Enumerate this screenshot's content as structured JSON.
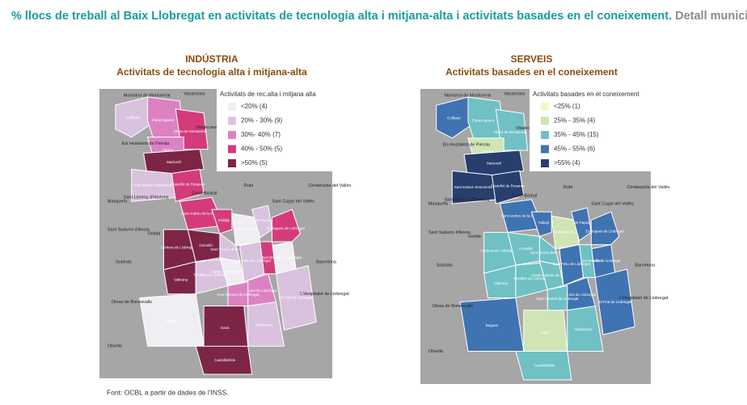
{
  "title": "% llocs de treball al Baix Llobregat en activitats de tecnologia alta i mitjana-alta i activitats basades en el coneixement.",
  "subtitle": "Detall municipal.",
  "maps": [
    {
      "heading": "INDÚSTRIA",
      "subheading": "Activitats de tecnologia alta i mitjana-alta",
      "legend_title": "Activitats de rec.alta i mitjana alta",
      "legend": [
        {
          "label": "<20% (4)",
          "color": "#f1eef3"
        },
        {
          "label": "20% - 30% (9)",
          "color": "#d9c2de"
        },
        {
          "label": "30%- 40% (7)",
          "color": "#dc82c2"
        },
        {
          "label": "40% - 50% (5)",
          "color": "#d43b7c"
        },
        {
          "label": ">50% (5)",
          "color": "#7d2547"
        }
      ]
    },
    {
      "heading": "SERVEIS",
      "subheading": "Activitats basades en el coneixement",
      "legend_title": "Activitats basades en el coneixement",
      "legend": [
        {
          "label": "<25% (1)",
          "color": "#f6f7c9"
        },
        {
          "label": "25% - 35% (4)",
          "color": "#cfe5b6"
        },
        {
          "label": "35% - 45% (15)",
          "color": "#6fc1c4"
        },
        {
          "label": "45% - 55% (6)",
          "color": "#3f73b1"
        },
        {
          "label": ">55% (4)",
          "color": "#283e6c"
        }
      ]
    }
  ],
  "municipalities": [
    "Collbató",
    "Esparreguera",
    "Olesa de Montserrat",
    "Abrera",
    "Martorell",
    "Sant Esteve Sesrovires",
    "Castellví de Rosanes",
    "Sant Andreu de la Barca",
    "Pallejà",
    "Corbera de Llobregat",
    "Cervelló",
    "Molins de Rei",
    "El Papiol",
    "Sant Vicenç dels Horts",
    "Vallirana",
    "Torrelles de Llobregat",
    "Santa Coloma de Cervelló",
    "Sant Boi de Llobregat",
    "Cornellà de Llobregat",
    "Esplugues de Llobregat",
    "Sant Just Desvern",
    "Sant Feliu de Llobregat",
    "Begues",
    "Gavà",
    "Castelldefels",
    "Viladecans",
    "El Prat de Llobregat",
    "Sant Climent de Llobregat"
  ],
  "places": [
    "Monistrol de Montserrat",
    "Vacarisses",
    "Viladecavalls",
    "Els Hostalets de Pierola",
    "Masquefa",
    "Castellbisbal",
    "Rubí",
    "Sant Llorenç d'Hortons",
    "Sant Cugat del Vallès",
    "Cerdanyola del Vallès",
    "Sant Sadurní d'Anoia",
    "Gelida",
    "Subirats",
    "Barcelona",
    "L'Hospitalet de Llobregat",
    "Olesa de Bonesvalls",
    "Olivella"
  ],
  "source": "Font: OCBL a partir de dades de l'INSS."
}
